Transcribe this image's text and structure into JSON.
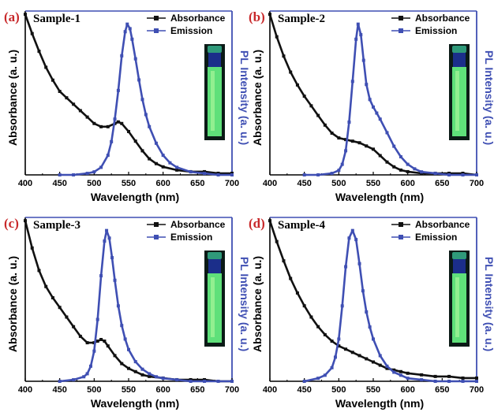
{
  "colors": {
    "absorbance": "#111111",
    "emission": "#3f4fb3",
    "panel_letter": "#c8282a",
    "right_axis": "#3f4fb3"
  },
  "chart_data": [
    {
      "type": "line",
      "panel_label": "(a)",
      "title": "Sample-1",
      "xlabel": "Wavelength (nm)",
      "ylabel": "Absorbance (a. u.)",
      "ylabel_right": "PL Intensity (a. u.)",
      "xlim": [
        400,
        700
      ],
      "x_ticks": [
        "400",
        "450",
        "500",
        "550",
        "600",
        "650",
        "700"
      ],
      "legend_position": "top-right",
      "series": [
        {
          "name": "Absorbance",
          "axis": "left",
          "marker": "square",
          "x": [
            400,
            410,
            420,
            430,
            440,
            450,
            460,
            470,
            480,
            490,
            500,
            510,
            520,
            530,
            535,
            540,
            550,
            560,
            570,
            580,
            590,
            600,
            620,
            640,
            660,
            680,
            700
          ],
          "y": [
            1.0,
            0.88,
            0.77,
            0.67,
            0.59,
            0.52,
            0.48,
            0.44,
            0.4,
            0.36,
            0.32,
            0.3,
            0.3,
            0.32,
            0.33,
            0.32,
            0.27,
            0.21,
            0.15,
            0.1,
            0.07,
            0.05,
            0.03,
            0.02,
            0.02,
            0.01,
            0.01
          ]
        },
        {
          "name": "Emission",
          "axis": "right",
          "marker": "square",
          "x": [
            450,
            470,
            490,
            500,
            510,
            520,
            525,
            530,
            535,
            540,
            545,
            548,
            552,
            555,
            560,
            565,
            570,
            575,
            580,
            590,
            600,
            610,
            620,
            640,
            660,
            680,
            700
          ],
          "y": [
            0.0,
            0.0,
            0.01,
            0.02,
            0.05,
            0.13,
            0.22,
            0.37,
            0.56,
            0.79,
            0.95,
            1.0,
            0.97,
            0.9,
            0.77,
            0.63,
            0.5,
            0.4,
            0.32,
            0.21,
            0.13,
            0.08,
            0.05,
            0.02,
            0.01,
            0.0,
            0.0
          ]
        }
      ]
    },
    {
      "type": "line",
      "panel_label": "(b)",
      "title": "Sample-2",
      "xlabel": "Wavelength (nm)",
      "ylabel": "Absorbance (a. u.)",
      "ylabel_right": "PL Intensity (a. u.)",
      "xlim": [
        400,
        700
      ],
      "x_ticks": [
        "400",
        "450",
        "500",
        "550",
        "600",
        "650",
        "700"
      ],
      "legend_position": "top-right",
      "series": [
        {
          "name": "Absorbance",
          "axis": "left",
          "marker": "square",
          "x": [
            400,
            410,
            420,
            430,
            440,
            450,
            460,
            470,
            480,
            490,
            500,
            510,
            520,
            530,
            540,
            550,
            560,
            570,
            580,
            590,
            600,
            620,
            640,
            660,
            680,
            700
          ],
          "y": [
            1.0,
            0.86,
            0.74,
            0.64,
            0.56,
            0.49,
            0.43,
            0.37,
            0.31,
            0.26,
            0.23,
            0.22,
            0.21,
            0.2,
            0.18,
            0.16,
            0.12,
            0.08,
            0.05,
            0.03,
            0.02,
            0.01,
            0.01,
            0.01,
            0.01,
            0.0
          ]
        },
        {
          "name": "Emission",
          "axis": "right",
          "marker": "square",
          "x": [
            450,
            470,
            490,
            500,
            505,
            510,
            515,
            520,
            525,
            528,
            532,
            536,
            540,
            545,
            550,
            555,
            560,
            570,
            580,
            590,
            600,
            610,
            620,
            640,
            660,
            680,
            700
          ],
          "y": [
            0.0,
            0.0,
            0.01,
            0.03,
            0.07,
            0.16,
            0.35,
            0.62,
            0.9,
            1.0,
            0.93,
            0.76,
            0.6,
            0.5,
            0.45,
            0.41,
            0.37,
            0.28,
            0.19,
            0.12,
            0.07,
            0.04,
            0.02,
            0.01,
            0.0,
            0.0,
            0.0
          ]
        }
      ]
    },
    {
      "type": "line",
      "panel_label": "(c)",
      "title": "Sample-3",
      "xlabel": "Wavelength (nm)",
      "ylabel": "Absorbance (a. u.)",
      "ylabel_right": "PL Intensity (a. u.)",
      "xlim": [
        400,
        700
      ],
      "x_ticks": [
        "400",
        "450",
        "500",
        "550",
        "600",
        "650",
        "700"
      ],
      "legend_position": "top-right",
      "series": [
        {
          "name": "Absorbance",
          "axis": "left",
          "marker": "square",
          "x": [
            400,
            410,
            420,
            430,
            440,
            450,
            460,
            470,
            480,
            490,
            500,
            505,
            510,
            515,
            520,
            530,
            540,
            550,
            560,
            570,
            580,
            600,
            620,
            640,
            660,
            680,
            700
          ],
          "y": [
            1.0,
            0.83,
            0.69,
            0.59,
            0.52,
            0.46,
            0.4,
            0.34,
            0.28,
            0.24,
            0.24,
            0.25,
            0.26,
            0.25,
            0.22,
            0.16,
            0.11,
            0.08,
            0.06,
            0.04,
            0.03,
            0.02,
            0.01,
            0.01,
            0.01,
            0.0,
            0.0
          ]
        },
        {
          "name": "Emission",
          "axis": "right",
          "marker": "square",
          "x": [
            450,
            470,
            485,
            490,
            495,
            500,
            505,
            510,
            515,
            518,
            522,
            526,
            530,
            535,
            540,
            545,
            550,
            560,
            570,
            580,
            590,
            600,
            620,
            640,
            660,
            680,
            700
          ],
          "y": [
            0.0,
            0.01,
            0.03,
            0.05,
            0.1,
            0.2,
            0.41,
            0.7,
            0.93,
            1.0,
            0.95,
            0.82,
            0.67,
            0.5,
            0.37,
            0.28,
            0.21,
            0.13,
            0.08,
            0.05,
            0.03,
            0.02,
            0.01,
            0.0,
            0.0,
            0.0,
            0.0
          ]
        }
      ]
    },
    {
      "type": "line",
      "panel_label": "(d)",
      "title": "Sample-4",
      "xlabel": "Wavelength (nm)",
      "ylabel": "Absorbance (a. u.)",
      "ylabel_right": "PL Intensity (a. u.)",
      "xlim": [
        400,
        700
      ],
      "x_ticks": [
        "400",
        "450",
        "500",
        "550",
        "600",
        "650",
        "700"
      ],
      "legend_position": "top-right",
      "series": [
        {
          "name": "Absorbance",
          "axis": "left",
          "marker": "square",
          "x": [
            400,
            410,
            420,
            430,
            440,
            450,
            460,
            470,
            480,
            490,
            500,
            510,
            520,
            530,
            540,
            550,
            560,
            570,
            580,
            590,
            600,
            620,
            640,
            660,
            680,
            700
          ],
          "y": [
            1.0,
            0.87,
            0.75,
            0.64,
            0.55,
            0.47,
            0.4,
            0.34,
            0.29,
            0.25,
            0.22,
            0.2,
            0.18,
            0.16,
            0.14,
            0.12,
            0.1,
            0.08,
            0.07,
            0.06,
            0.05,
            0.04,
            0.03,
            0.03,
            0.02,
            0.02
          ]
        },
        {
          "name": "Emission",
          "axis": "right",
          "marker": "square",
          "x": [
            450,
            470,
            480,
            490,
            495,
            500,
            505,
            510,
            515,
            520,
            525,
            530,
            535,
            540,
            545,
            550,
            560,
            570,
            580,
            590,
            600,
            620,
            640,
            660,
            680,
            700
          ],
          "y": [
            0.0,
            0.02,
            0.04,
            0.09,
            0.16,
            0.28,
            0.5,
            0.76,
            0.95,
            1.0,
            0.94,
            0.78,
            0.6,
            0.46,
            0.36,
            0.28,
            0.17,
            0.1,
            0.06,
            0.04,
            0.02,
            0.01,
            0.0,
            0.0,
            0.0,
            0.0
          ]
        }
      ]
    }
  ]
}
